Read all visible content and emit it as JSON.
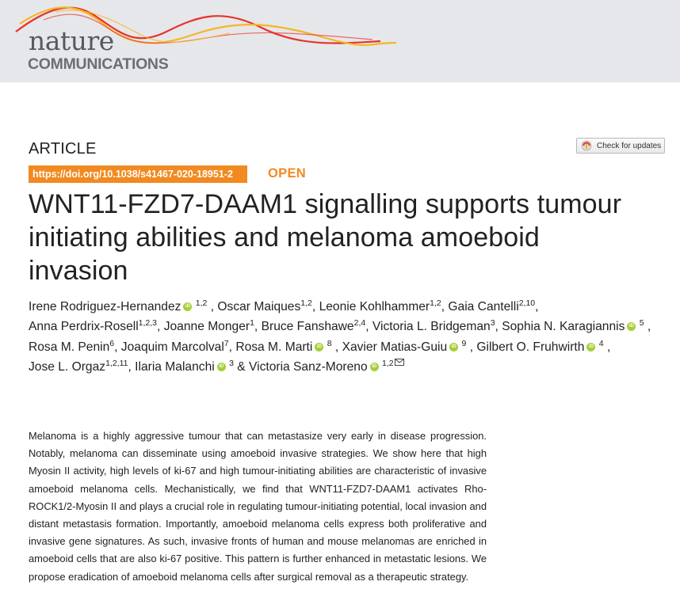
{
  "journal": {
    "name_top": "nature",
    "name_bottom": "COMMUNICATIONS"
  },
  "article": {
    "type": "ARTICLE",
    "doi": "https://doi.org/10.1038/s41467-020-18951-2",
    "access": "OPEN",
    "check_updates": "Check for updates",
    "title": "WNT11-FZD7-DAAM1 signalling supports tumour initiating abilities and melanoma amoeboid invasion"
  },
  "authors": [
    {
      "name": "Irene Rodriguez-Hernandez",
      "orcid": true,
      "aff": "1,2",
      "sep": ", "
    },
    {
      "name": "Oscar Maiques",
      "orcid": false,
      "aff": "1,2",
      "sep": ", "
    },
    {
      "name": "Leonie Kohlhammer",
      "orcid": false,
      "aff": "1,2",
      "sep": ", "
    },
    {
      "name": "Gaia Cantelli",
      "orcid": false,
      "aff": "2,10",
      "sep": ", "
    },
    {
      "name": "Anna Perdrix-Rosell",
      "orcid": false,
      "aff": "1,2,3",
      "sep": ", "
    },
    {
      "name": "Joanne Monger",
      "orcid": false,
      "aff": "1",
      "sep": ", "
    },
    {
      "name": "Bruce Fanshawe",
      "orcid": false,
      "aff": "2,4",
      "sep": ", "
    },
    {
      "name": "Victoria L. Bridgeman",
      "orcid": false,
      "aff": "3",
      "sep": ", "
    },
    {
      "name": "Sophia N. Karagiannis",
      "orcid": true,
      "aff": "5",
      "sep": ", "
    },
    {
      "name": "Rosa M. Penin",
      "orcid": false,
      "aff": "6",
      "sep": ", "
    },
    {
      "name": "Joaquim Marcolval",
      "orcid": false,
      "aff": "7",
      "sep": ", "
    },
    {
      "name": "Rosa M. Marti",
      "orcid": true,
      "aff": "8",
      "sep": ", "
    },
    {
      "name": "Xavier Matias-Guiu",
      "orcid": true,
      "aff": "9",
      "sep": ", "
    },
    {
      "name": "Gilbert O. Fruhwirth",
      "orcid": true,
      "aff": "4",
      "sep": ", "
    },
    {
      "name": "Jose L. Orgaz",
      "orcid": false,
      "aff": "1,2,11",
      "sep": ", "
    },
    {
      "name": "Ilaria Malanchi",
      "orcid": true,
      "aff": "3",
      "sep": " & "
    },
    {
      "name": "Victoria Sanz-Moreno",
      "orcid": true,
      "aff": "1,2",
      "sep": "",
      "corresponding": true
    }
  ],
  "abstract": "Melanoma is a highly aggressive tumour that can metastasize very early in disease progression. Notably, melanoma can disseminate using amoeboid invasive strategies. We show here that high Myosin II activity, high levels of ki-67 and high tumour-initiating abilities are characteristic of invasive amoeboid melanoma cells. Mechanistically, we find that WNT11-FZD7-DAAM1 activates Rho-ROCK1/2-Myosin II and plays a crucial role in regulating tumour-initiating potential, local invasion and distant metastasis formation. Importantly, amoeboid melanoma cells express both proliferative and invasive gene signatures. As such, invasive fronts of human and mouse melanomas are enriched in amoeboid cells that are also ki-67 positive. This pattern is further enhanced in metastatic lesions. We propose eradication of amoeboid melanoma cells after surgical removal as a therapeutic strategy.",
  "colors": {
    "banner_bg": "#e6e7ea",
    "accent_orange": "#f18a21",
    "wave_red": "#e8322c",
    "wave_yellow": "#f5b625",
    "orcid_green": "#a6ce39"
  },
  "icons": [
    "wave-logo-icon",
    "check-updates-icon",
    "orcid-icon",
    "mail-icon"
  ]
}
